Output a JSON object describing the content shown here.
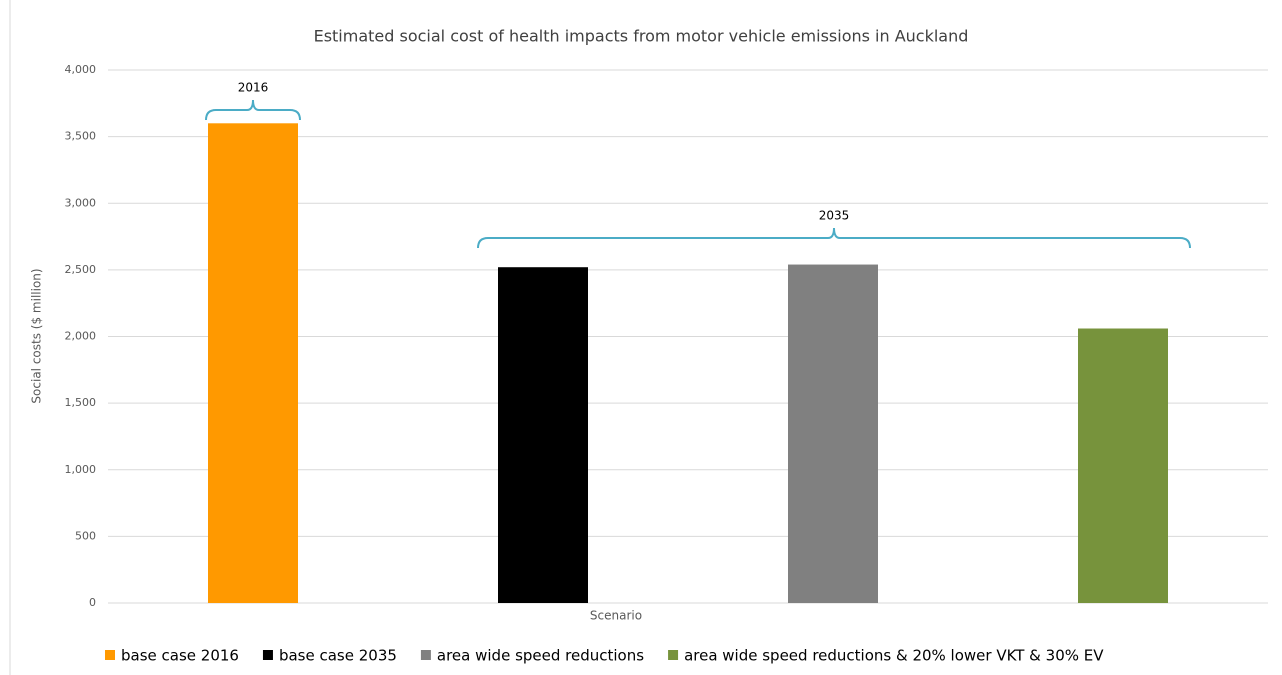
{
  "chart_data": {
    "type": "bar",
    "title": "Estimated social cost of health impacts from motor vehicle emissions in Auckland",
    "x_label": "Scenario",
    "y_label": "Social costs ($ million)",
    "series": [
      {
        "name": "base case 2016",
        "color": "#ff9900",
        "values": [
          3600
        ]
      },
      {
        "name": "base case 2035",
        "color": "#000000",
        "values": [
          2520
        ]
      },
      {
        "name": "area wide speed reductions",
        "color": "#808080",
        "values": [
          2540
        ]
      },
      {
        "name": "area wide speed reductions & 20% lower VKT & 30% EV",
        "color": "#77933c",
        "values": [
          2060
        ]
      }
    ],
    "annotations": [
      "2016",
      "2035"
    ],
    "ylim": [
      0,
      4000
    ],
    "yticks": [
      0,
      500,
      {
        "value": 1000,
        "label": "1,000"
      },
      {
        "value": 1500,
        "label": "1,500"
      },
      {
        "value": 2000,
        "label": "2,000"
      },
      {
        "value": 2500,
        "label": "2,500"
      },
      {
        "value": 3000,
        "label": "3,000"
      },
      {
        "value": 3500,
        "label": "3,500"
      },
      {
        "value": 4000,
        "label": "4,000"
      }
    ],
    "grid": true,
    "legend": "bottom"
  }
}
